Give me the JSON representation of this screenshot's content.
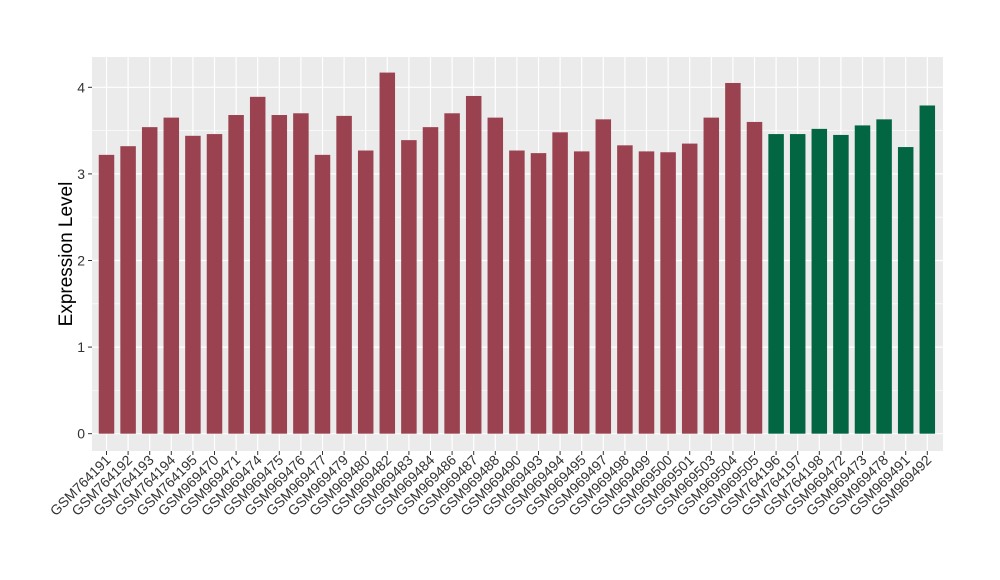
{
  "chart_data": {
    "type": "bar",
    "ylabel": "Expression Level",
    "xlabel": "",
    "title": "",
    "ylim": [
      -0.2,
      4.35
    ],
    "yticks": [
      0,
      1,
      2,
      3,
      4
    ],
    "grid": true,
    "legend": "none",
    "colors": {
      "group1": "#9B4250",
      "group2": "#036642",
      "panel": "#EBEBEB",
      "grid": "#FFFFFF"
    },
    "categories": [
      "GSM764191",
      "GSM764192",
      "GSM764193",
      "GSM764194",
      "GSM764195",
      "GSM969470",
      "GSM969471",
      "GSM969474",
      "GSM969475",
      "GSM969476",
      "GSM969477",
      "GSM969479",
      "GSM969480",
      "GSM969482",
      "GSM969483",
      "GSM969484",
      "GSM969486",
      "GSM969487",
      "GSM969488",
      "GSM969490",
      "GSM969493",
      "GSM969494",
      "GSM969495",
      "GSM969497",
      "GSM969498",
      "GSM969499",
      "GSM969500",
      "GSM969501",
      "GSM969503",
      "GSM969504",
      "GSM969505",
      "GSM764196",
      "GSM764197",
      "GSM764198",
      "GSM969472",
      "GSM969473",
      "GSM969478",
      "GSM969491",
      "GSM969492"
    ],
    "values": [
      3.22,
      3.32,
      3.54,
      3.65,
      3.44,
      3.46,
      3.68,
      3.89,
      3.68,
      3.7,
      3.22,
      3.67,
      3.27,
      4.17,
      3.39,
      3.54,
      3.7,
      3.9,
      3.65,
      3.27,
      3.24,
      3.48,
      3.26,
      3.63,
      3.33,
      3.26,
      3.25,
      3.35,
      3.65,
      4.05,
      3.6,
      3.46,
      3.46,
      3.52,
      3.45,
      3.56,
      3.63,
      3.31,
      3.79
    ],
    "groups": [
      "group1",
      "group1",
      "group1",
      "group1",
      "group1",
      "group1",
      "group1",
      "group1",
      "group1",
      "group1",
      "group1",
      "group1",
      "group1",
      "group1",
      "group1",
      "group1",
      "group1",
      "group1",
      "group1",
      "group1",
      "group1",
      "group1",
      "group1",
      "group1",
      "group1",
      "group1",
      "group1",
      "group1",
      "group1",
      "group1",
      "group1",
      "group2",
      "group2",
      "group2",
      "group2",
      "group2",
      "group2",
      "group2",
      "group2"
    ]
  }
}
